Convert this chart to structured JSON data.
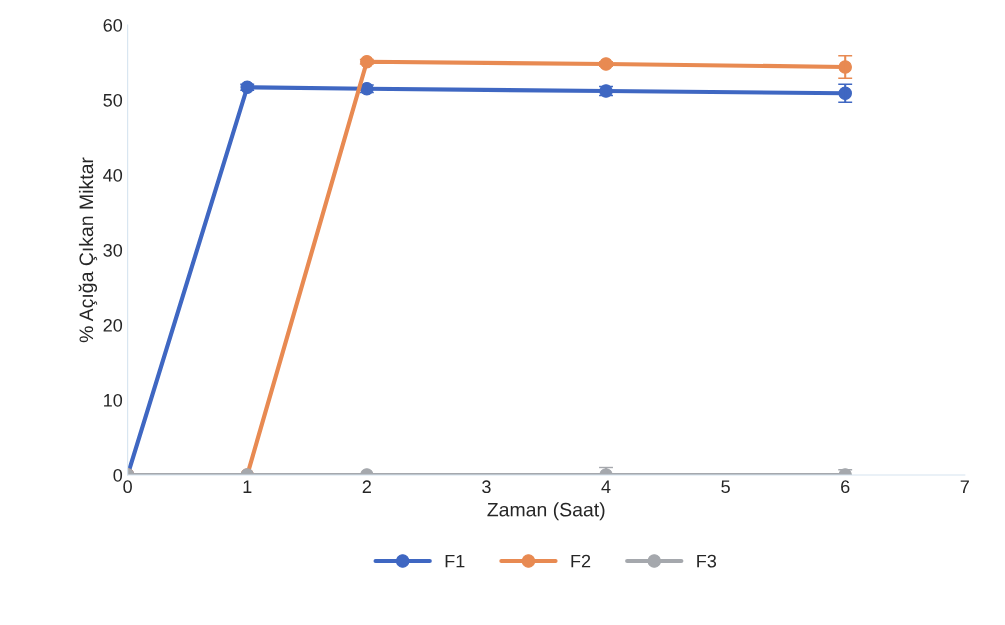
{
  "chart_data": {
    "type": "line",
    "xlabel": "Zaman (Saat)",
    "ylabel": "% Açığa Çıkan Miktar",
    "x": [
      0,
      1,
      2,
      4,
      6
    ],
    "series": [
      {
        "name": "F1",
        "color": "#3f67c2",
        "values": [
          0,
          51.7,
          51.5,
          51.2,
          50.9
        ],
        "errors": [
          null,
          0.4,
          0.5,
          0.6,
          1.2
        ]
      },
      {
        "name": "F2",
        "color": "#e88a52",
        "values": [
          0,
          0,
          55.1,
          54.8,
          54.4
        ],
        "errors": [
          null,
          null,
          0.3,
          0.3,
          1.5
        ]
      },
      {
        "name": "F3",
        "color": "#a5a8ad",
        "values": [
          0,
          0,
          0,
          0,
          0
        ],
        "errors": [
          null,
          null,
          null,
          1.0,
          0.7
        ]
      }
    ],
    "xlim": [
      0,
      7
    ],
    "xticks": [
      0,
      1,
      2,
      3,
      4,
      5,
      6,
      7
    ],
    "ylim": [
      0,
      60
    ],
    "yticks": [
      0,
      10,
      20,
      30,
      40,
      50,
      60
    ],
    "grid": false,
    "legend": "bottom",
    "marker": "circle",
    "line_style": "solid"
  }
}
